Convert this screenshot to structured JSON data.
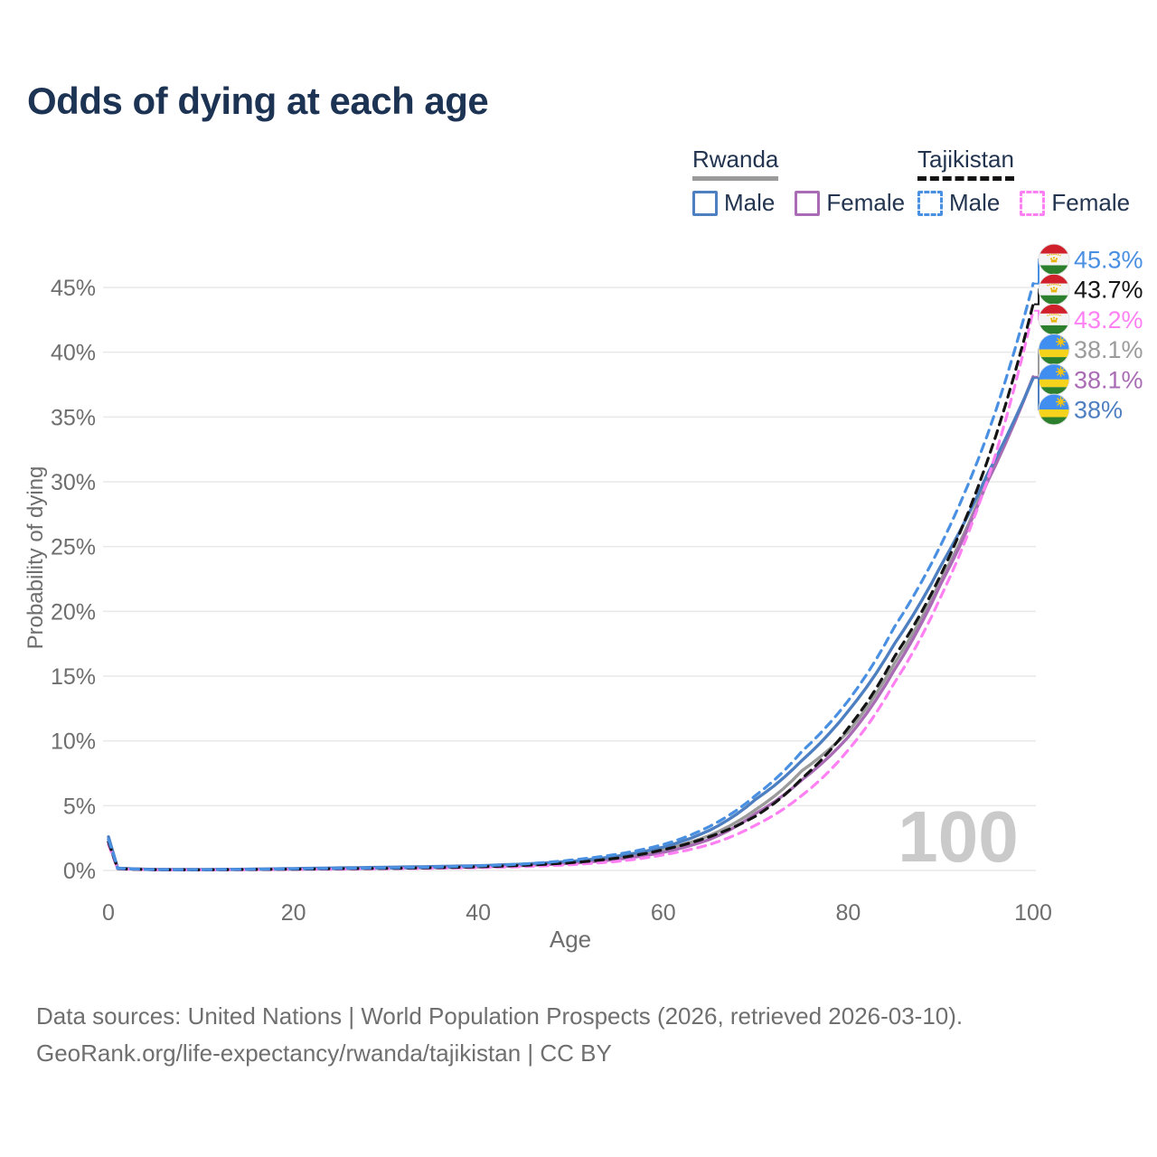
{
  "title": "Odds of dying at each age",
  "watermark": "100",
  "legend": {
    "groups": [
      {
        "name": "Rwanda",
        "line_style": "solid",
        "underline_color": "#9a9a9a",
        "items": [
          {
            "label": "Male",
            "color": "#4e7fc0"
          },
          {
            "label": "Female",
            "color": "#a96cb4"
          }
        ]
      },
      {
        "name": "Tajikistan",
        "line_style": "dashed",
        "underline_color": "#141414",
        "items": [
          {
            "label": "Male",
            "color": "#4a90e2"
          },
          {
            "label": "Female",
            "color": "#ff80f3"
          }
        ]
      }
    ]
  },
  "chart_data": {
    "type": "line",
    "title": "Odds of dying at each age",
    "xlabel": "Age",
    "ylabel": "Probability of dying",
    "xlim": [
      0,
      100
    ],
    "ylim": [
      0,
      47
    ],
    "x_ticks": [
      0,
      20,
      40,
      60,
      80,
      100
    ],
    "y_ticks": [
      0,
      5,
      10,
      15,
      20,
      25,
      30,
      35,
      40,
      45
    ],
    "y_tick_suffix": "%",
    "grid": "horizontal",
    "legend_position": "top-right",
    "ages": [
      0,
      1,
      5,
      10,
      15,
      20,
      25,
      30,
      35,
      40,
      45,
      50,
      55,
      60,
      65,
      70,
      75,
      80,
      85,
      90,
      95,
      100
    ],
    "series": [
      {
        "id": "rw_both",
        "name": "Rwanda Both sexes",
        "country": "Rwanda",
        "sex": "Both",
        "color": "#9b9b9b",
        "dashed": false,
        "values": [
          2.4,
          0.17,
          0.075,
          0.065,
          0.09,
          0.12,
          0.17,
          0.21,
          0.26,
          0.32,
          0.44,
          0.62,
          0.97,
          1.6,
          2.7,
          4.7,
          7.7,
          10.7,
          16.0,
          22.4,
          30.1,
          38.1
        ]
      },
      {
        "id": "rw_female",
        "name": "Rwanda Female",
        "country": "Rwanda",
        "sex": "Female",
        "color": "#a96cb4",
        "dashed": false,
        "values": [
          2.2,
          0.15,
          0.07,
          0.06,
          0.08,
          0.1,
          0.14,
          0.18,
          0.22,
          0.28,
          0.38,
          0.55,
          0.85,
          1.4,
          2.4,
          4.4,
          7.0,
          10.3,
          15.5,
          22.1,
          29.9,
          38.1
        ]
      },
      {
        "id": "rw_male",
        "name": "Rwanda Male",
        "country": "Rwanda",
        "sex": "Male",
        "color": "#4e7fc0",
        "dashed": false,
        "values": [
          2.6,
          0.18,
          0.08,
          0.07,
          0.1,
          0.15,
          0.2,
          0.25,
          0.3,
          0.37,
          0.5,
          0.7,
          1.1,
          1.8,
          3.1,
          5.5,
          8.5,
          12.3,
          17.5,
          23.5,
          30.5,
          38.0
        ]
      },
      {
        "id": "tj_female",
        "name": "Tajikistan Female",
        "country": "Tajikistan",
        "sex": "Female",
        "color": "#ff80f3",
        "dashed": true,
        "values": [
          2.0,
          0.12,
          0.05,
          0.045,
          0.06,
          0.08,
          0.1,
          0.13,
          0.17,
          0.22,
          0.3,
          0.45,
          0.7,
          1.2,
          2.0,
          3.5,
          5.8,
          9.3,
          14.5,
          21.1,
          30.0,
          43.2
        ]
      },
      {
        "id": "tj_both",
        "name": "Tajikistan Both sexes",
        "country": "Tajikistan",
        "sex": "Both",
        "color": "#141414",
        "dashed": true,
        "values": [
          2.2,
          0.14,
          0.06,
          0.05,
          0.075,
          0.1,
          0.14,
          0.16,
          0.21,
          0.28,
          0.4,
          0.6,
          0.95,
          1.6,
          2.6,
          4.2,
          7.1,
          11.0,
          16.5,
          22.8,
          31.5,
          43.7
        ]
      },
      {
        "id": "tj_male",
        "name": "Tajikistan Male",
        "country": "Tajikistan",
        "sex": "Male",
        "color": "#4a90e2",
        "dashed": true,
        "values": [
          2.4,
          0.16,
          0.07,
          0.06,
          0.09,
          0.13,
          0.17,
          0.2,
          0.26,
          0.35,
          0.5,
          0.8,
          1.25,
          2.0,
          3.4,
          5.8,
          9.2,
          13.1,
          18.8,
          25.1,
          33.5,
          45.3
        ]
      }
    ]
  },
  "end_labels": [
    {
      "flag": "tajikistan",
      "series": "tj_male",
      "label": "45.3%",
      "color": "#4a90e2",
      "line_value": 45.3
    },
    {
      "flag": "tajikistan",
      "series": "tj_both",
      "label": "43.7%",
      "color": "#141414",
      "line_value": 43.7
    },
    {
      "flag": "tajikistan",
      "series": "tj_female",
      "label": "43.2%",
      "color": "#ff80f3",
      "line_value": 43.2
    },
    {
      "flag": "rwanda",
      "series": "rw_both",
      "label": "38.1%",
      "color": "#9b9b9b",
      "line_value": 38.1
    },
    {
      "flag": "rwanda",
      "series": "rw_female",
      "label": "38.1%",
      "color": "#a96cb4",
      "line_value": 38.1
    },
    {
      "flag": "rwanda",
      "series": "rw_male",
      "label": "38%",
      "color": "#4e7fc0",
      "line_value": 38.0
    }
  ],
  "footer": {
    "line1": "Data sources: United Nations | World Population Prospects (2026, retrieved 2026-03-10).",
    "line2": "GeoRank.org/life-expectancy/rwanda/tajikistan | CC BY"
  },
  "colors": {
    "title": "#1c3354",
    "axis_text": "#6e6e6e",
    "gridline": "#e9e9e9",
    "watermark": "#cacaca",
    "legend_text": "#22344f",
    "footer_text": "#6f6f6f"
  }
}
